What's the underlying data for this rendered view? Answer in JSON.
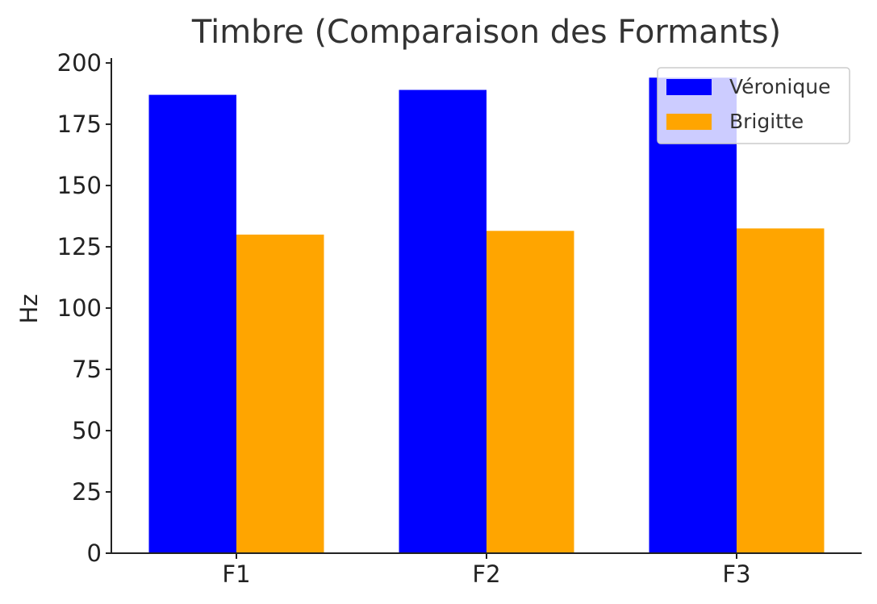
{
  "chart_data": {
    "type": "bar",
    "title": "Timbre (Comparaison des Formants)",
    "xlabel": "",
    "ylabel": "Hz",
    "categories": [
      "F1",
      "F2",
      "F3"
    ],
    "series": [
      {
        "name": "Véronique",
        "color": "#0000ff",
        "values": [
          187,
          189,
          194
        ]
      },
      {
        "name": "Brigitte",
        "color": "#ffa500",
        "values": [
          130,
          131.5,
          132.5
        ]
      }
    ],
    "ylim": [
      0,
      202
    ],
    "yticks": [
      0,
      25,
      50,
      75,
      100,
      125,
      150,
      175,
      200
    ],
    "grid": false,
    "legend_position": "top-right"
  }
}
